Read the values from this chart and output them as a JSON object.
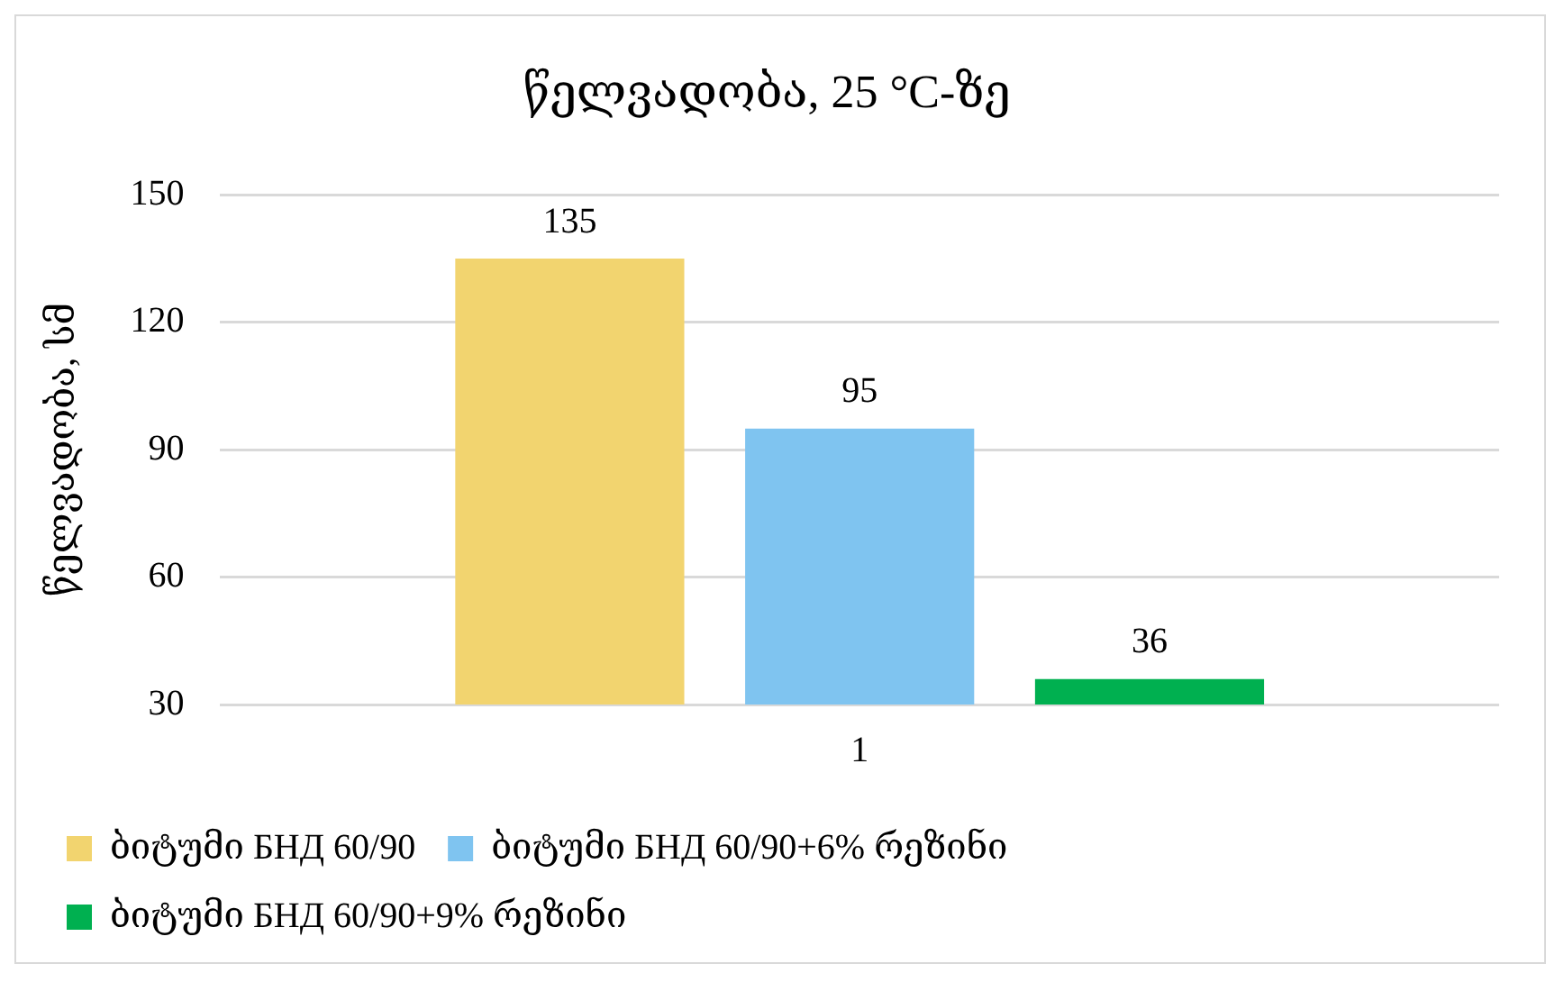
{
  "chart_data": {
    "type": "bar",
    "title": "წელვადობა, 25 °C-ზე",
    "ylabel": "წელვადობა, სმ",
    "categories": [
      "1"
    ],
    "series": [
      {
        "name": "ბიტუმი БНД 60/90",
        "color": "#f2d46f",
        "values": [
          135
        ]
      },
      {
        "name": "ბიტუმი БНД 60/90+6% რეზინი",
        "color": "#7fc4f0",
        "values": [
          95
        ]
      },
      {
        "name": "ბიტუმი БНД 60/90+9% რეზინი",
        "color": "#00b050",
        "values": [
          36
        ]
      }
    ],
    "ylim": [
      30,
      150
    ],
    "yticks": [
      30,
      60,
      90,
      120,
      150
    ],
    "grid": "y",
    "legend": "bottom",
    "data_labels": true
  }
}
